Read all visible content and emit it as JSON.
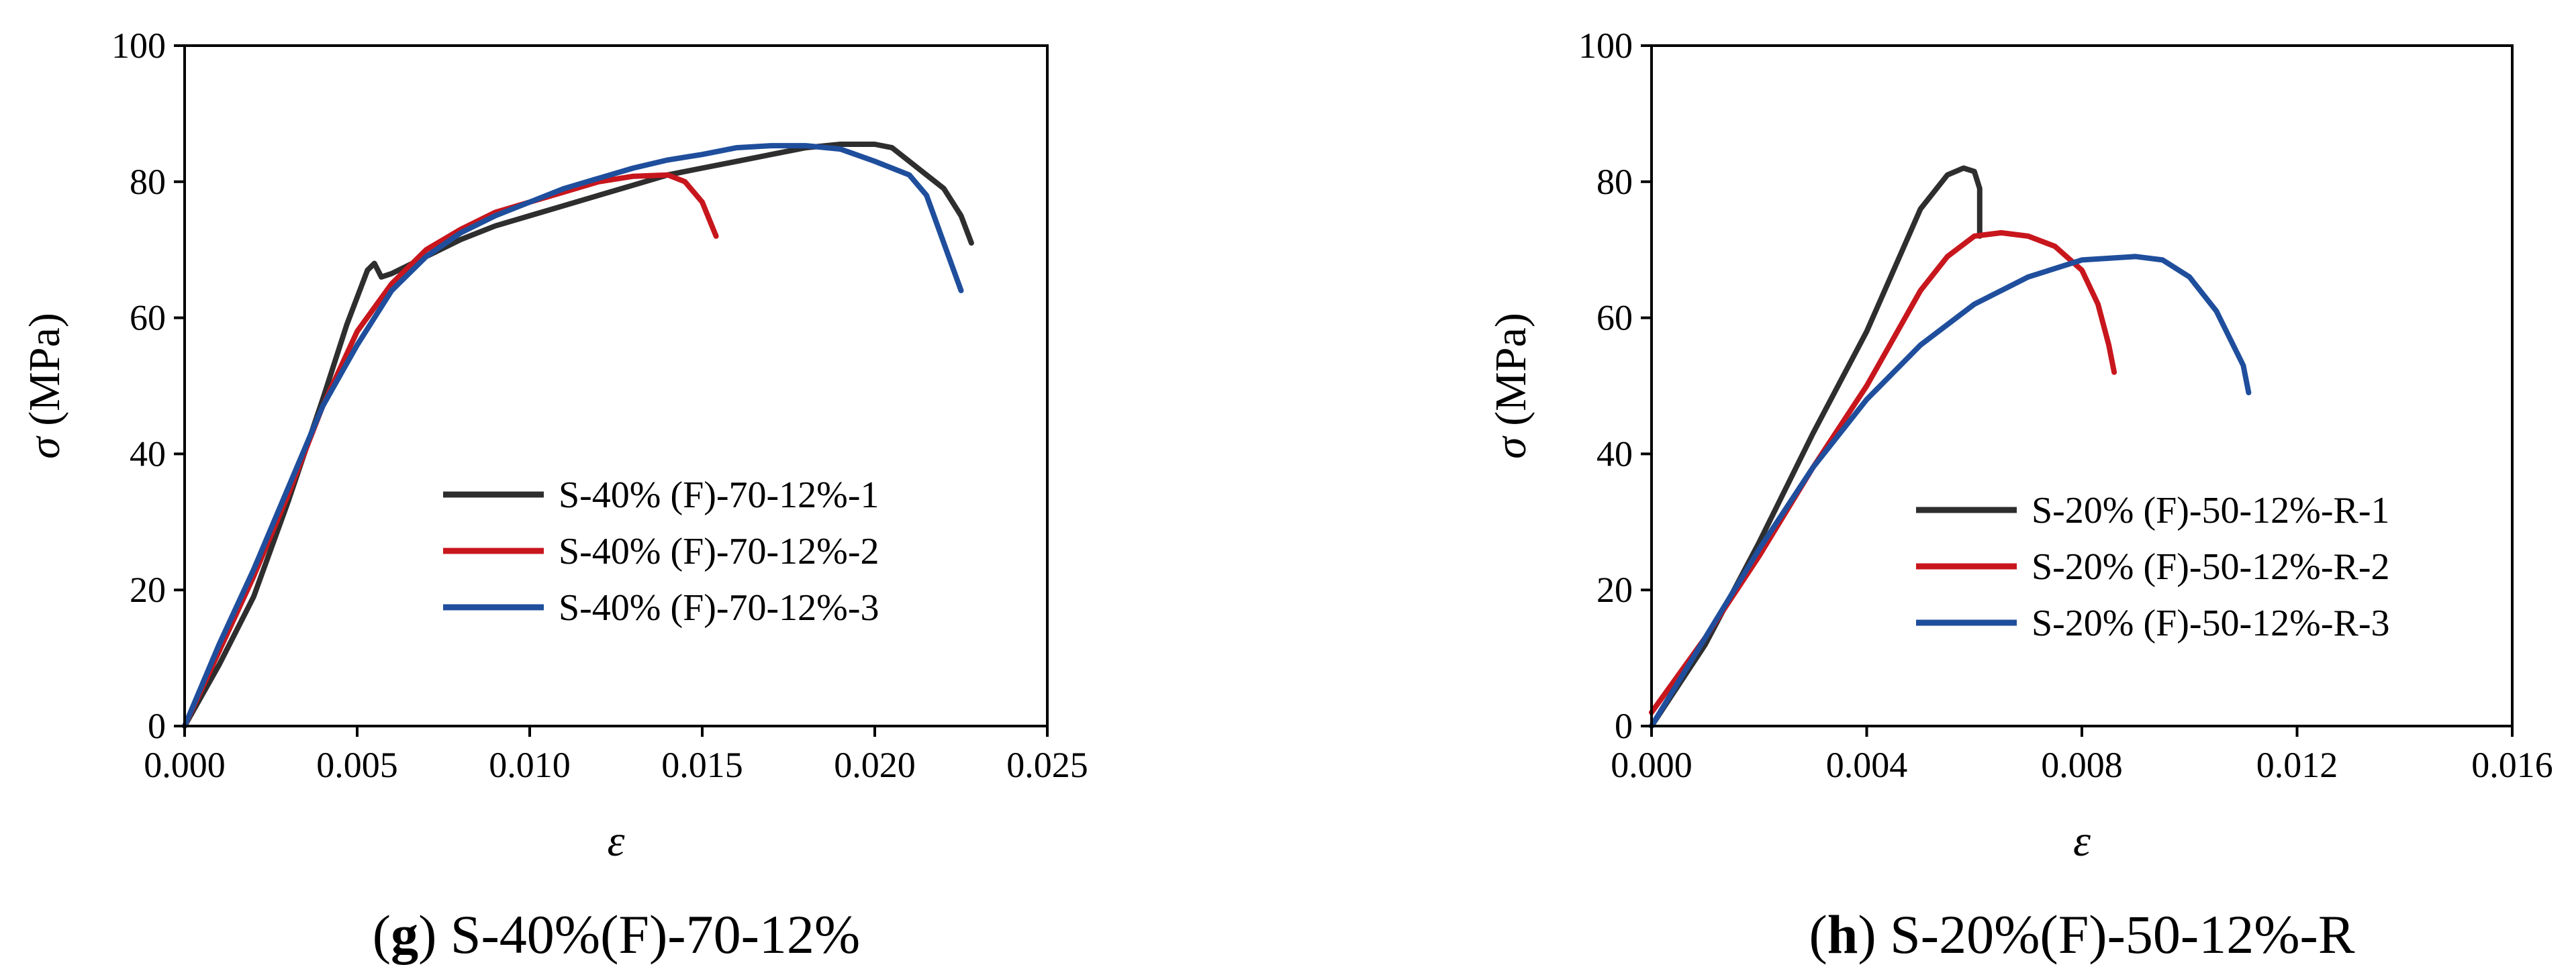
{
  "chart_data": [
    {
      "type": "line",
      "caption_letter": "g",
      "caption_text": " S-40%(F)-70-12%",
      "xlabel": "ε",
      "ylabel_symbol": "σ",
      "ylabel_unit": " (MPa)",
      "xlim": [
        0,
        0.025
      ],
      "ylim": [
        0,
        100
      ],
      "xticks": [
        0,
        0.005,
        0.01,
        0.015,
        0.02,
        0.025
      ],
      "xtick_labels": [
        "0.000",
        "0.005",
        "0.010",
        "0.015",
        "0.020",
        "0.025"
      ],
      "yticks": [
        0,
        20,
        40,
        60,
        80,
        100
      ],
      "ytick_labels": [
        "0",
        "20",
        "40",
        "60",
        "80",
        "100"
      ],
      "legend_position": "lower-right",
      "series": [
        {
          "name": "S-40% (F)-70-12%-1",
          "color": "#2e2e2e",
          "x": [
            0,
            0.001,
            0.002,
            0.003,
            0.004,
            0.0047,
            0.0053,
            0.0055,
            0.0057,
            0.006,
            0.007,
            0.008,
            0.009,
            0.01,
            0.011,
            0.012,
            0.013,
            0.014,
            0.015,
            0.016,
            0.017,
            0.018,
            0.019,
            0.02,
            0.0205,
            0.021,
            0.0215,
            0.022,
            0.0225,
            0.0228
          ],
          "y": [
            0,
            9,
            19,
            33,
            48,
            59,
            67,
            68,
            66,
            66.5,
            69,
            71.5,
            73.5,
            75,
            76.5,
            78,
            79.5,
            81,
            82,
            83,
            84,
            85,
            85.5,
            85.5,
            85,
            83,
            81,
            79,
            75,
            71
          ]
        },
        {
          "name": "S-40% (F)-70-12%-2",
          "color": "#c8161d",
          "x": [
            0,
            0.001,
            0.002,
            0.003,
            0.004,
            0.005,
            0.006,
            0.007,
            0.008,
            0.009,
            0.01,
            0.011,
            0.012,
            0.013,
            0.014,
            0.0145,
            0.015,
            0.0154
          ],
          "y": [
            0,
            11,
            22,
            34,
            47,
            58,
            65,
            70,
            73,
            75.5,
            77,
            78.5,
            80,
            80.8,
            81,
            80,
            77,
            72
          ]
        },
        {
          "name": "S-40% (F)-70-12%-3",
          "color": "#1f4e9c",
          "x": [
            0,
            0.001,
            0.002,
            0.003,
            0.004,
            0.005,
            0.006,
            0.007,
            0.008,
            0.009,
            0.01,
            0.011,
            0.012,
            0.013,
            0.014,
            0.015,
            0.016,
            0.017,
            0.018,
            0.019,
            0.02,
            0.021,
            0.0215,
            0.022,
            0.0225
          ],
          "y": [
            0,
            12,
            23,
            35,
            47,
            56,
            64,
            69,
            72.5,
            75,
            77,
            79,
            80.5,
            82,
            83.2,
            84,
            85,
            85.3,
            85.3,
            84.8,
            83,
            81,
            78,
            71,
            64
          ]
        }
      ]
    },
    {
      "type": "line",
      "caption_letter": "h",
      "caption_text": " S-20%(F)-50-12%-R",
      "xlabel": "ε",
      "ylabel_symbol": "σ",
      "ylabel_unit": " (MPa)",
      "xlim": [
        0,
        0.016
      ],
      "ylim": [
        0,
        100
      ],
      "xticks": [
        0,
        0.004,
        0.008,
        0.012,
        0.016
      ],
      "xtick_labels": [
        "0.000",
        "0.004",
        "0.008",
        "0.012",
        "0.016"
      ],
      "yticks": [
        0,
        20,
        40,
        60,
        80,
        100
      ],
      "ytick_labels": [
        "0",
        "20",
        "40",
        "60",
        "80",
        "100"
      ],
      "legend_position": "lower-right",
      "series": [
        {
          "name": "S-20% (F)-50-12%-R-1",
          "color": "#2e2e2e",
          "x": [
            0,
            0.001,
            0.002,
            0.003,
            0.004,
            0.0045,
            0.005,
            0.0055,
            0.0058,
            0.006,
            0.0061,
            0.0061
          ],
          "y": [
            0,
            12,
            27,
            43,
            58,
            67,
            76,
            81,
            82,
            81.5,
            79,
            72
          ]
        },
        {
          "name": "S-20% (F)-50-12%-R-2",
          "color": "#c8161d",
          "x": [
            0,
            0.001,
            0.002,
            0.003,
            0.004,
            0.0045,
            0.005,
            0.0055,
            0.006,
            0.0065,
            0.007,
            0.0075,
            0.008,
            0.0083,
            0.0085,
            0.0086
          ],
          "y": [
            2,
            13,
            25,
            38,
            50,
            57,
            64,
            69,
            72,
            72.5,
            72,
            70.5,
            67,
            62,
            56,
            52
          ]
        },
        {
          "name": "S-20% (F)-50-12%-R-3",
          "color": "#1f4e9c",
          "x": [
            0,
            0.001,
            0.002,
            0.003,
            0.004,
            0.005,
            0.006,
            0.007,
            0.008,
            0.009,
            0.0095,
            0.01,
            0.0105,
            0.011,
            0.0111
          ],
          "y": [
            0,
            13,
            26,
            38,
            48,
            56,
            62,
            66,
            68.5,
            69,
            68.5,
            66,
            61,
            53,
            49
          ]
        }
      ]
    }
  ]
}
